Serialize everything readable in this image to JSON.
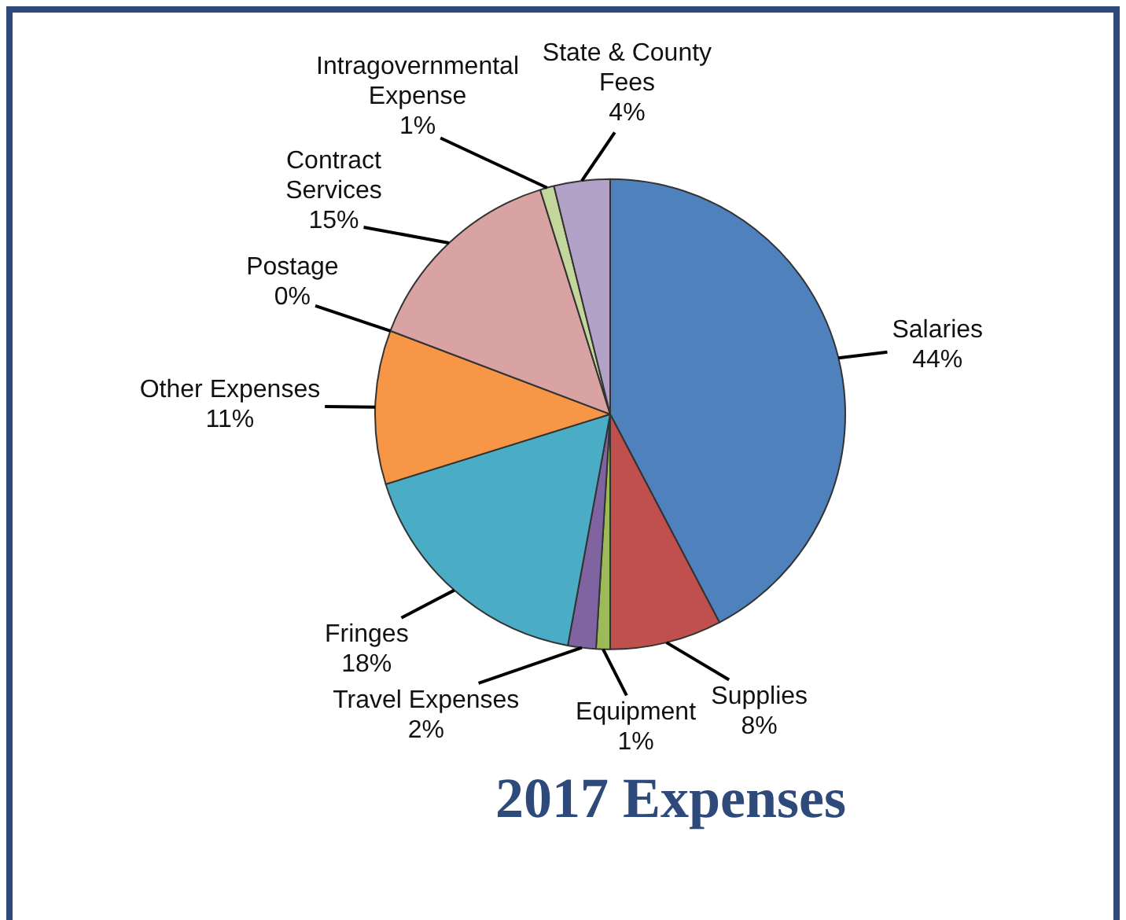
{
  "chart_data": {
    "type": "pie",
    "title": "2017 Expenses",
    "categories": [
      "Salaries",
      "Supplies",
      "Equipment",
      "Travel Expenses",
      "Fringes",
      "Other Expenses",
      "Postage",
      "Contract Services",
      "Intragovernmental Expense",
      "State & County Fees"
    ],
    "values": [
      44,
      8,
      1,
      2,
      18,
      11,
      0,
      15,
      1,
      4
    ],
    "value_labels": [
      "44%",
      "8%",
      "1%",
      "2%",
      "18%",
      "11%",
      "0%",
      "15%",
      "1%",
      "4%"
    ],
    "colors": [
      "#4f81bd",
      "#c0504d",
      "#9bbb59",
      "#8064a2",
      "#4bacc6",
      "#f79646",
      "#2c4d75",
      "#d9a3a3",
      "#c3d69b",
      "#b3a2c7"
    ]
  }
}
